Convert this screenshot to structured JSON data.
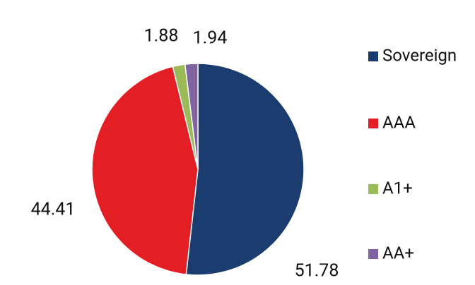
{
  "chart_data": {
    "type": "pie",
    "categories": [
      "Sovereign",
      "AAA",
      "A1+",
      "AA+"
    ],
    "values": [
      51.78,
      44.41,
      1.88,
      1.94
    ],
    "colors": [
      "#1a3c6e",
      "#e31e24",
      "#9bbb59",
      "#8064a2"
    ],
    "legend": "right"
  }
}
